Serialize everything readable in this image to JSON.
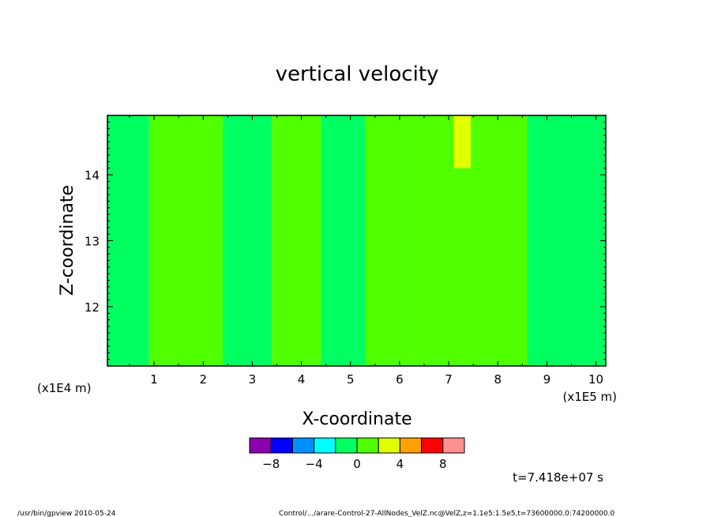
{
  "chart_data": {
    "type": "heatmap",
    "title": "vertical velocity",
    "xlabel": "X-coordinate",
    "ylabel": "Z-coordinate",
    "x_scale_label": "(x1E5 m)",
    "z_scale_label": "(x1E4 m)",
    "x_ticks": [
      1,
      2,
      3,
      4,
      5,
      6,
      7,
      8,
      9,
      10
    ],
    "y_ticks": [
      12,
      13,
      14
    ],
    "xlim": [
      0.05,
      10.2
    ],
    "ylim": [
      11.1,
      14.9
    ],
    "colorbar": {
      "levels": [
        -10,
        -8,
        -6,
        -4,
        -2,
        0,
        2,
        4,
        6,
        8,
        10
      ],
      "colors": [
        "#8a00b0",
        "#0000ff",
        "#0090ff",
        "#00ffff",
        "#00ff60",
        "#50ff00",
        "#e0ff00",
        "#ffa000",
        "#ff0000",
        "#ff9090"
      ],
      "tick_values": [
        -8,
        -4,
        0,
        4,
        8
      ],
      "tick_labels": [
        "−8",
        "−4",
        "0",
        "4",
        "8"
      ]
    },
    "x_bands": [
      {
        "x0": 0.05,
        "x1": 0.9,
        "value": -1
      },
      {
        "x0": 0.9,
        "x1": 1.9,
        "value": 0.5
      },
      {
        "x0": 1.9,
        "x1": 2.4,
        "value": 1
      },
      {
        "x0": 2.4,
        "x1": 3.4,
        "value": -0.5
      },
      {
        "x0": 3.4,
        "x1": 4.4,
        "value": 1
      },
      {
        "x0": 4.4,
        "x1": 5.3,
        "value": -0.5
      },
      {
        "x0": 5.3,
        "x1": 6.3,
        "value": 0.5
      },
      {
        "x0": 6.3,
        "x1": 7.9,
        "value": 1.5
      },
      {
        "x0": 7.9,
        "x1": 8.6,
        "value": 0.5
      },
      {
        "x0": 8.6,
        "x1": 10.2,
        "value": -0.5
      }
    ],
    "highlights": [
      {
        "x0": 7.1,
        "x1": 7.45,
        "z0": 14.1,
        "z1": 14.9,
        "value": 3
      }
    ]
  },
  "footer": {
    "time_label": "t=7.418e+07 s",
    "program": "/usr/bin/gpview   2010-05-24",
    "source": "Control/.../arare-Control-27-AllNodes_VelZ.nc@VelZ,z=1.1e5:1.5e5,t=73600000.0:74200000.0"
  }
}
